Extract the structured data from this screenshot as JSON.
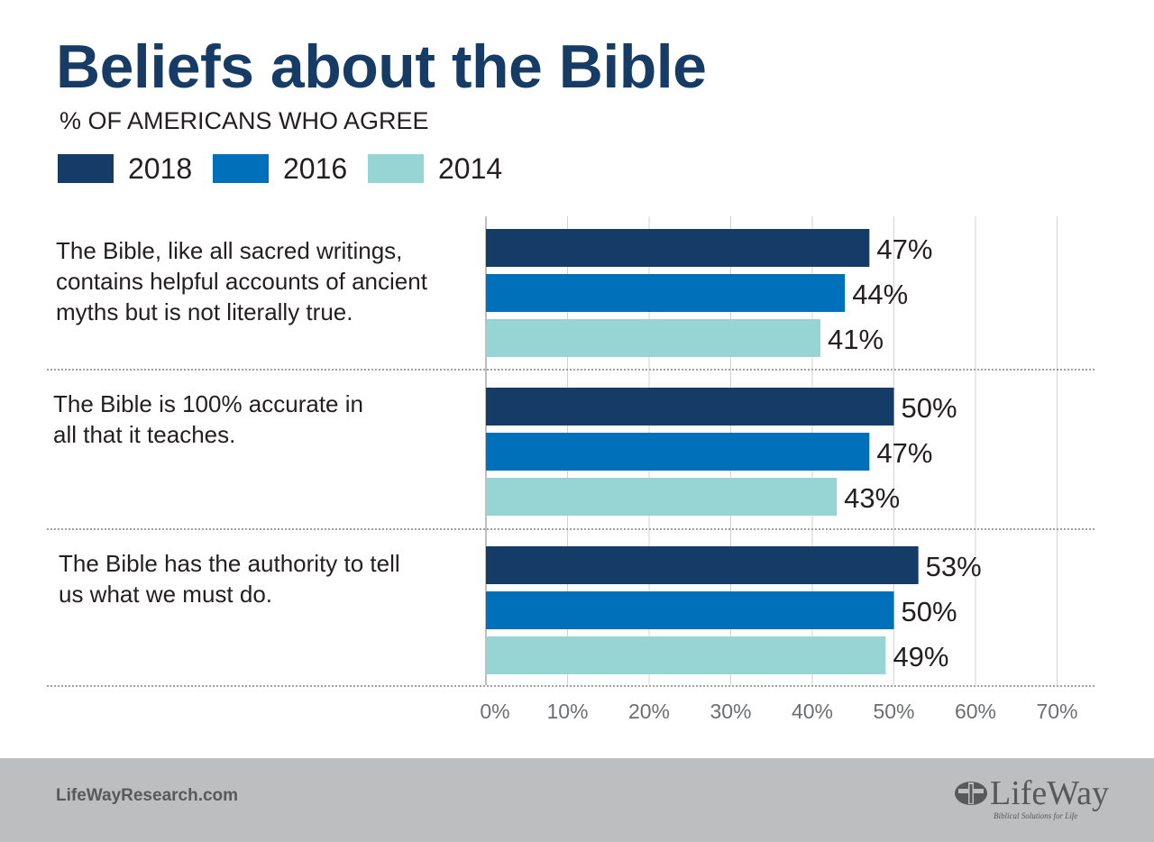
{
  "title": "Beliefs about the Bible",
  "subtitle": "% OF AMERICANS WHO AGREE",
  "footer": {
    "url": "LifeWayResearch.com",
    "logo_text": "LifeWay",
    "logo_tagline": "Biblical Solutions for Life",
    "logo_icon": "lifeway-cross-mark-icon"
  },
  "colors": {
    "title": "#163c66",
    "text": "#231f20",
    "series_2018": "#143c66",
    "series_2016": "#0070ba",
    "series_2014": "#97d4d4",
    "axis_text": "#6d6e71",
    "footer_bg": "#bcbec0",
    "footer_text": "#58595b",
    "logo": "#58595b"
  },
  "chart_data": {
    "type": "bar",
    "orientation": "horizontal",
    "categories": [
      [
        "The Bible, like all sacred writings,",
        "contains helpful accounts of ancient",
        "myths but is not literally true."
      ],
      [
        "The Bible is 100% accurate in",
        "all that it teaches."
      ],
      [
        "The Bible has the authority to tell",
        "us what we must do."
      ]
    ],
    "series": [
      {
        "name": "2018",
        "values": [
          47,
          50,
          53
        ],
        "labels": [
          "47%",
          "50%",
          "53%"
        ]
      },
      {
        "name": "2016",
        "values": [
          44,
          47,
          50
        ],
        "labels": [
          "44%",
          "47%",
          "50%"
        ]
      },
      {
        "name": "2014",
        "values": [
          41,
          43,
          49
        ],
        "labels": [
          "41%",
          "43%",
          "49%"
        ]
      }
    ],
    "xlim": [
      0,
      70
    ],
    "x_ticks": [
      0,
      10,
      20,
      30,
      40,
      50,
      60,
      70
    ],
    "x_tick_labels": [
      "0%",
      "10%",
      "20%",
      "30%",
      "40%",
      "50%",
      "60%",
      "70%"
    ],
    "grid": true,
    "legend_position": "top-left"
  }
}
